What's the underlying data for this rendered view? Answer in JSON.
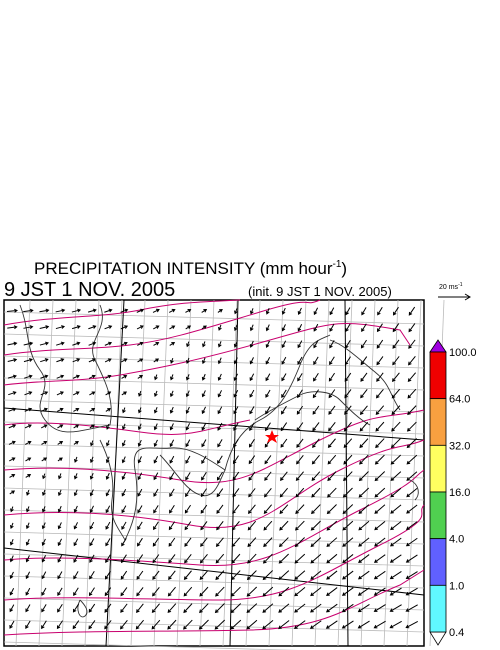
{
  "header": {
    "title": "PRECIPITATION INTENSITY (mm hour",
    "title_unit_exponent": "-1",
    "title_close": ")",
    "valid_time": "9 JST 1 NOV. 2005",
    "init_time": "(init. 9 JST 1 NOV. 2005)"
  },
  "reference_vector": {
    "label": "20 ms",
    "exponent": "-1"
  },
  "legend": {
    "levels": [
      "100.0",
      "64.0",
      "32.0",
      "16.0",
      "4.0",
      "1.0",
      "0.4"
    ]
  }
}
